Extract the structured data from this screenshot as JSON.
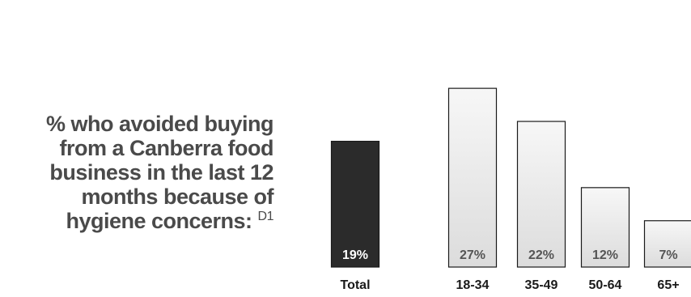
{
  "title": {
    "lines": [
      "% who avoided buying",
      "from a Canberra food",
      "business in the last 12",
      "months because of",
      "hygiene concerns:"
    ],
    "footnote": "D1"
  },
  "chart_data": {
    "type": "bar",
    "title": "% who avoided buying from a Canberra food business in the last 12 months because of hygiene concerns",
    "categories": [
      "Total",
      "18-34",
      "35-49",
      "50-64",
      "65+"
    ],
    "values": [
      19,
      27,
      22,
      12,
      7
    ],
    "value_labels": [
      "19%",
      "27%",
      "22%",
      "12%",
      "7%"
    ],
    "unit": "%",
    "colors": {
      "highlight": "#2b2b2b",
      "normal": "#eeeeee",
      "normal_edge": "#1a1a1a",
      "label_light": "#ffffff",
      "label_dark": "#555555"
    },
    "highlight_index": 0,
    "ylim": [
      0,
      28
    ],
    "grid": false,
    "legend": "none"
  }
}
